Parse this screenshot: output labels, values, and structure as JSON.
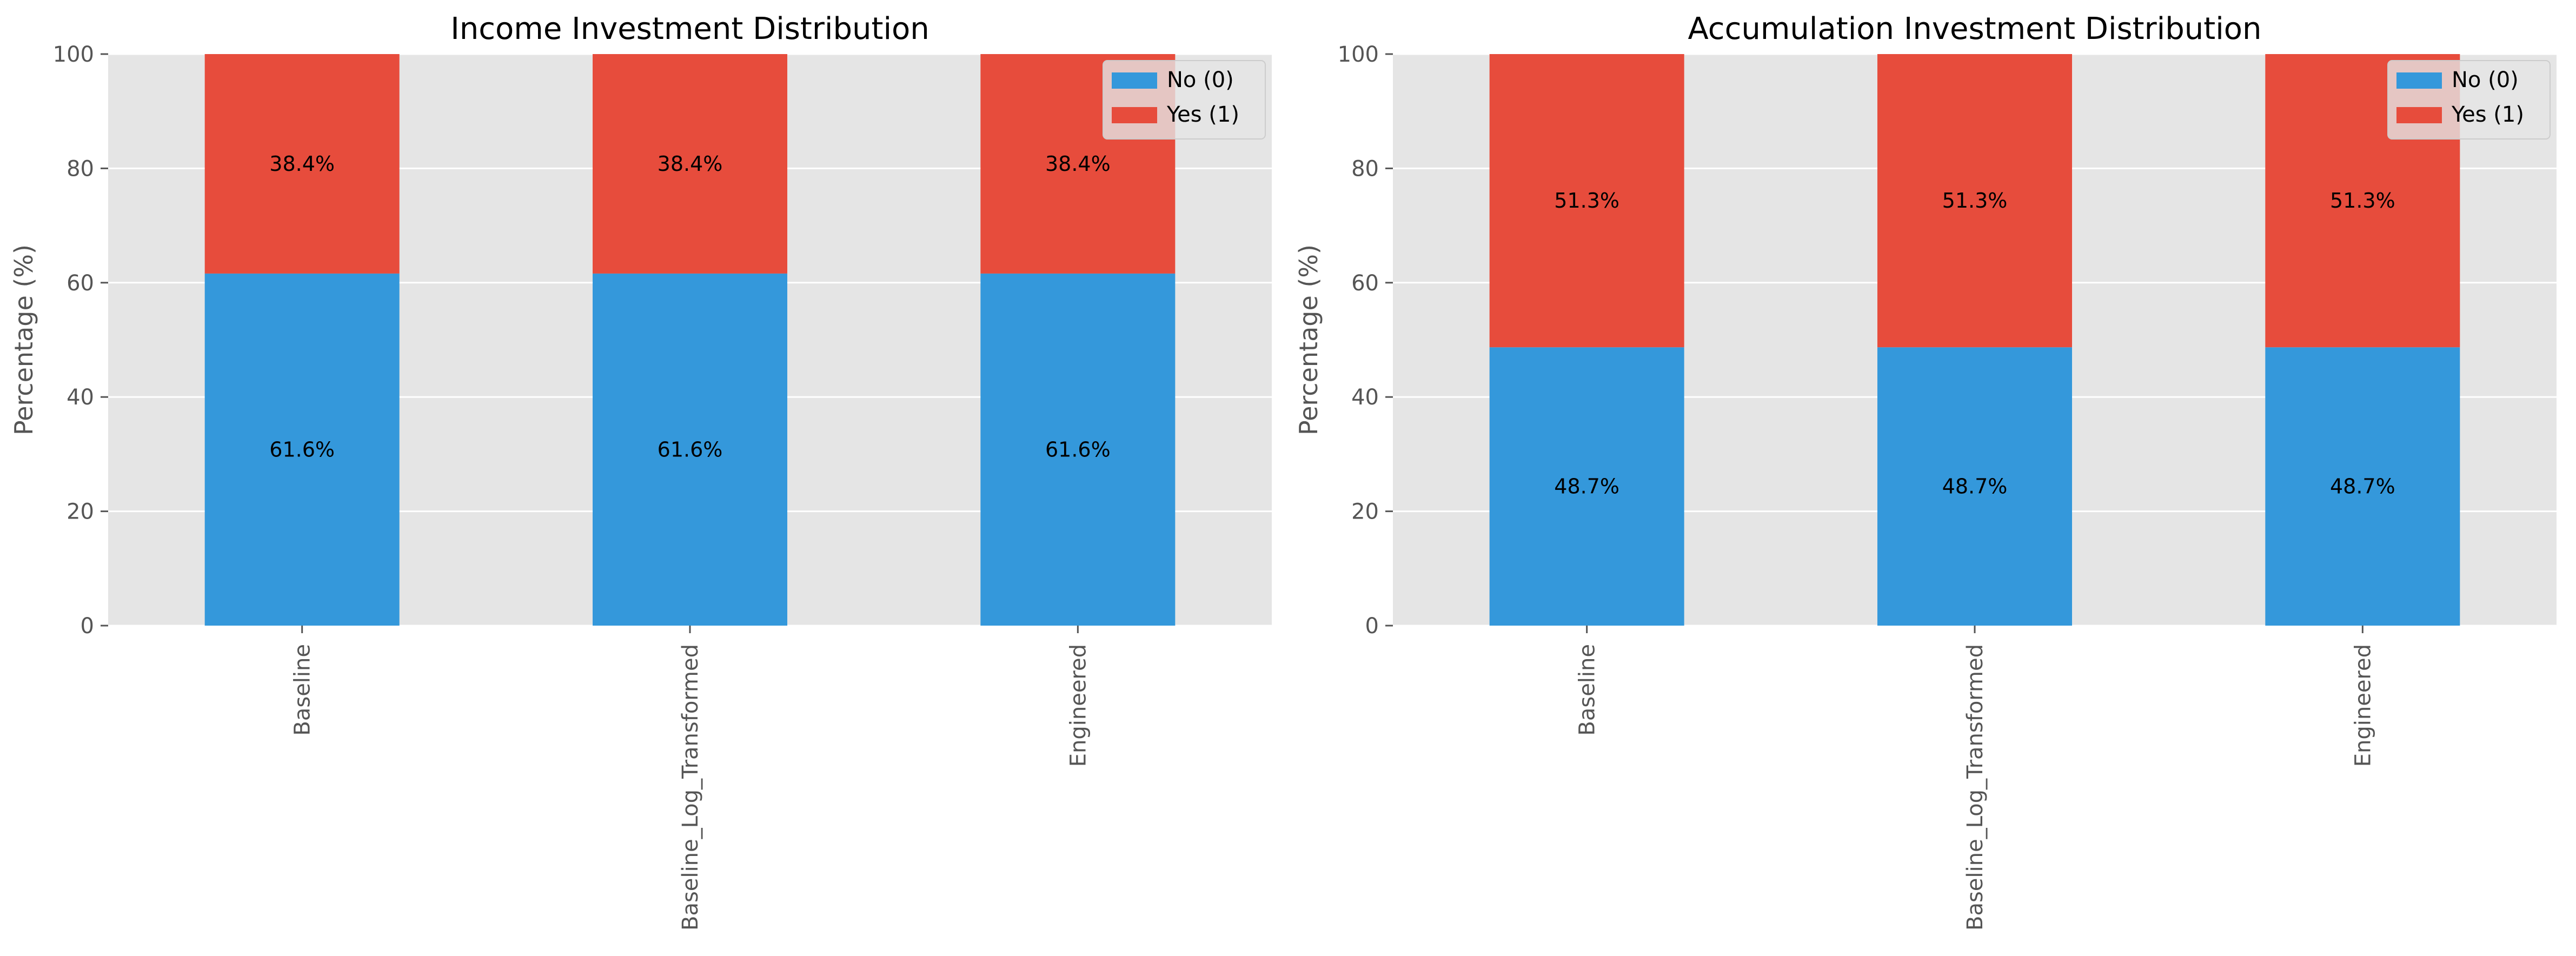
{
  "chart_data": [
    {
      "type": "bar",
      "stacked": true,
      "title": "Income Investment Distribution",
      "xlabel": "",
      "ylabel": "Percentage (%)",
      "ylim": [
        0,
        100
      ],
      "yticks": [
        "0",
        "20",
        "40",
        "60",
        "80",
        "100"
      ],
      "categories": [
        "Baseline",
        "Baseline_Log_Transformed",
        "Engineered"
      ],
      "series": [
        {
          "name": "No (0)",
          "color": "#3498db",
          "values": [
            61.6,
            61.6,
            61.6
          ],
          "labels": [
            "61.6%",
            "61.6%",
            "61.6%"
          ]
        },
        {
          "name": "Yes (1)",
          "color": "#e74c3c",
          "values": [
            38.4,
            38.4,
            38.4
          ],
          "labels": [
            "38.4%",
            "38.4%",
            "38.4%"
          ]
        }
      ],
      "grid": true,
      "legend": "top-right"
    },
    {
      "type": "bar",
      "stacked": true,
      "title": "Accumulation Investment Distribution",
      "xlabel": "",
      "ylabel": "Percentage (%)",
      "ylim": [
        0,
        100
      ],
      "yticks": [
        "0",
        "20",
        "40",
        "60",
        "80",
        "100"
      ],
      "categories": [
        "Baseline",
        "Baseline_Log_Transformed",
        "Engineered"
      ],
      "series": [
        {
          "name": "No (0)",
          "color": "#3498db",
          "values": [
            48.7,
            48.7,
            48.7
          ],
          "labels": [
            "48.7%",
            "48.7%",
            "48.7%"
          ]
        },
        {
          "name": "Yes (1)",
          "color": "#e74c3c",
          "values": [
            51.3,
            51.3,
            51.3
          ],
          "labels": [
            "51.3%",
            "51.3%",
            "51.3%"
          ]
        }
      ],
      "grid": true,
      "legend": "top-right"
    }
  ]
}
